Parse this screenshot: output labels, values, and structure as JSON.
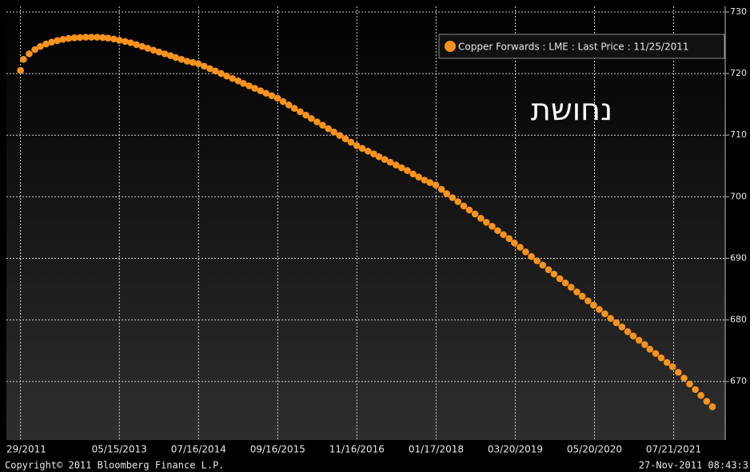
{
  "chart_data": {
    "type": "scatter",
    "annotation": "נחושת",
    "x": [
      "11/29/2011",
      "12/15/2011",
      "01/15/2012",
      "02/15/2012",
      "03/15/2012",
      "04/15/2012",
      "05/15/2012",
      "06/15/2012",
      "07/15/2012",
      "08/15/2012",
      "09/15/2012",
      "10/15/2012",
      "11/15/2012",
      "12/15/2012",
      "01/15/2013",
      "02/15/2013",
      "03/15/2013",
      "04/15/2013",
      "05/15/2013",
      "06/15/2013",
      "07/15/2013",
      "08/15/2013",
      "09/15/2013",
      "10/15/2013",
      "11/15/2013",
      "12/15/2013",
      "01/15/2014",
      "02/15/2014",
      "03/15/2014",
      "04/15/2014",
      "05/15/2014",
      "06/15/2014",
      "07/15/2014",
      "08/15/2014",
      "09/15/2014",
      "10/15/2014",
      "11/15/2014",
      "12/15/2014",
      "01/15/2015",
      "02/15/2015",
      "03/15/2015",
      "04/15/2015",
      "05/15/2015",
      "06/15/2015",
      "07/15/2015",
      "08/15/2015",
      "09/15/2015",
      "10/15/2015",
      "11/15/2015",
      "12/15/2015",
      "01/15/2016",
      "02/15/2016",
      "03/15/2016",
      "04/15/2016",
      "05/15/2016",
      "06/15/2016",
      "07/15/2016",
      "08/15/2016",
      "09/15/2016",
      "10/15/2016",
      "11/15/2016",
      "12/15/2016",
      "01/15/2017",
      "02/15/2017",
      "03/15/2017",
      "04/15/2017",
      "05/15/2017",
      "06/15/2017",
      "07/15/2017",
      "08/15/2017",
      "09/15/2017",
      "10/15/2017",
      "11/15/2017",
      "12/15/2017",
      "01/15/2018",
      "02/15/2018",
      "03/15/2018",
      "04/15/2018",
      "05/15/2018",
      "06/15/2018",
      "07/15/2018",
      "08/15/2018",
      "09/15/2018",
      "10/15/2018",
      "11/15/2018",
      "12/15/2018",
      "01/15/2019",
      "02/15/2019",
      "03/15/2019",
      "04/15/2019",
      "05/15/2019",
      "06/15/2019",
      "07/15/2019",
      "08/15/2019",
      "09/15/2019",
      "10/15/2019",
      "11/15/2019",
      "12/15/2019",
      "01/15/2020",
      "02/15/2020",
      "03/15/2020",
      "04/15/2020",
      "05/15/2020",
      "06/15/2020",
      "07/15/2020",
      "08/15/2020",
      "09/15/2020",
      "10/15/2020",
      "11/15/2020",
      "12/15/2020",
      "01/15/2021",
      "02/15/2021",
      "03/15/2021",
      "04/15/2021",
      "05/15/2021",
      "06/15/2021",
      "07/15/2021",
      "08/15/2021",
      "09/15/2021",
      "10/15/2021",
      "11/15/2021",
      "12/15/2021",
      "01/15/2022",
      "02/15/2022"
    ],
    "series": [
      {
        "name": "Copper Forwards : LME : Last Price : 11/25/2011",
        "color": "#f7931e",
        "values": [
          720.5,
          722.3,
          723.2,
          723.9,
          724.4,
          724.8,
          725.1,
          725.35,
          725.55,
          725.7,
          725.8,
          725.85,
          725.9,
          725.9,
          725.9,
          725.85,
          725.75,
          725.6,
          725.4,
          725.2,
          725.0,
          724.7,
          724.4,
          724.1,
          723.8,
          723.5,
          723.2,
          722.9,
          722.6,
          722.3,
          722.0,
          721.8,
          721.6,
          721.2,
          720.8,
          720.4,
          720.0,
          719.6,
          719.2,
          718.8,
          718.4,
          718.0,
          717.6,
          717.2,
          716.8,
          716.4,
          716.0,
          715.45,
          714.9,
          714.35,
          713.8,
          713.25,
          712.7,
          712.15,
          711.6,
          711.05,
          710.5,
          709.95,
          709.4,
          708.85,
          708.3,
          707.85,
          707.4,
          706.95,
          706.5,
          706.05,
          705.6,
          705.15,
          704.7,
          704.25,
          703.7,
          703.2,
          702.7,
          702.3,
          701.9,
          701.2,
          700.5,
          699.85,
          699.2,
          698.5,
          697.85,
          697.2,
          696.5,
          695.85,
          695.2,
          694.5,
          693.85,
          693.2,
          692.5,
          691.8,
          691.05,
          690.3,
          689.6,
          688.9,
          688.15,
          687.45,
          686.7,
          686.0,
          685.3,
          684.55,
          683.85,
          683.1,
          682.4,
          681.7,
          681.0,
          680.25,
          679.55,
          678.85,
          678.1,
          677.4,
          676.7,
          676.0,
          675.25,
          674.55,
          673.85,
          673.1,
          672.4,
          671.5,
          670.55,
          669.6,
          668.7,
          667.75,
          666.8,
          665.9
        ]
      }
    ],
    "xlim": [
      "09/14/2011",
      "04/25/2022"
    ],
    "xticks": [
      {
        "value": "11/29/2011",
        "label": "29/2011"
      },
      "05/15/2013",
      "07/16/2014",
      "09/16/2015",
      "11/16/2016",
      "01/17/2018",
      "03/20/2019",
      "05/20/2020",
      "07/21/2021"
    ],
    "ylim": [
      660.5,
      730.9
    ],
    "yticks": [
      670,
      680,
      690,
      700,
      710,
      720,
      730
    ],
    "grid": true,
    "legend": "top-right"
  },
  "copyright": "Copyright© 2011 Bloomberg Finance L.P.",
  "timestamp": "27-Nov-2011 08:43:3"
}
